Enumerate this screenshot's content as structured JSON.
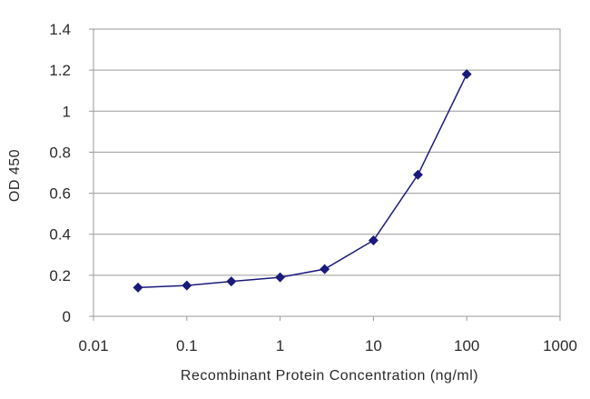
{
  "chart_data": {
    "type": "line",
    "title": "",
    "xlabel": "Recombinant Protein Concentration (ng/ml)",
    "ylabel": "OD 450",
    "x_scale": "log",
    "xlim": [
      0.01,
      1000
    ],
    "ylim": [
      0,
      1.4
    ],
    "x_ticks": [
      0.01,
      0.1,
      1,
      10,
      100,
      1000
    ],
    "x_tick_labels": [
      "0.01",
      "0.1",
      "1",
      "10",
      "100",
      "1000"
    ],
    "y_ticks": [
      0,
      0.2,
      0.4,
      0.6,
      0.8,
      1,
      1.2,
      1.4
    ],
    "y_tick_labels": [
      "0",
      "0.2",
      "0.4",
      "0.6",
      "0.8",
      "1",
      "1.2",
      "1.4"
    ],
    "grid": "horizontal",
    "legend": "none",
    "series": [
      {
        "x": [
          0.03,
          0.1,
          0.3,
          1,
          3,
          10,
          30,
          100
        ],
        "y": [
          0.14,
          0.15,
          0.17,
          0.19,
          0.23,
          0.37,
          0.69,
          1.18
        ],
        "color": "#1a1a7a",
        "marker": "diamond"
      }
    ]
  }
}
